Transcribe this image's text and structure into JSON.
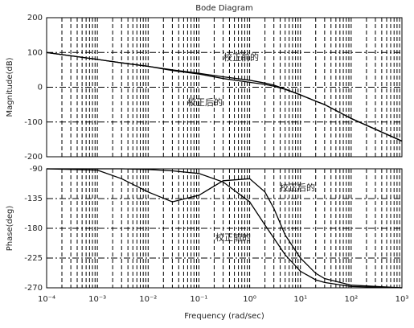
{
  "chart_data": [
    {
      "type": "line",
      "title": "Bode Diagram",
      "ylabel": "Magnitude(dB)",
      "log_x": true,
      "grid": true,
      "x": [
        0.0001,
        0.001,
        0.003,
        0.01,
        0.03,
        0.1,
        0.3,
        1,
        2,
        3,
        5,
        10,
        20,
        30,
        100,
        1000
      ],
      "series": [
        {
          "color": "#000000",
          "values": [
            100,
            80,
            70,
            60,
            50,
            40,
            30,
            20,
            12,
            6,
            -5,
            -22,
            -40,
            -50,
            -90,
            -155
          ]
        },
        {
          "color": "#000000",
          "values": [
            100,
            80,
            70,
            60,
            48,
            38,
            25,
            14,
            8,
            3,
            -6,
            -22,
            -40,
            -50,
            -90,
            -155
          ]
        }
      ],
      "annotations": [
        "校正前的",
        "校正后的"
      ],
      "xlim": [
        0.0001,
        1000
      ],
      "ylim": [
        -200,
        200
      ],
      "yticks": [
        -200,
        -100,
        0,
        100,
        200
      ]
    },
    {
      "type": "line",
      "ylabel": "Phase(deg)",
      "xlabel": "Frequency  (rad/sec)",
      "log_x": true,
      "grid": true,
      "x": [
        0.0001,
        0.001,
        0.003,
        0.01,
        0.03,
        0.1,
        0.3,
        1,
        2,
        3,
        5,
        10,
        20,
        30,
        100,
        1000
      ],
      "series": [
        {
          "color": "#000000",
          "values": [
            -90,
            -90,
            -90,
            -91,
            -93,
            -97,
            -110,
            -140,
            -175,
            -195,
            -220,
            -245,
            -258,
            -262,
            -268,
            -270
          ]
        },
        {
          "color": "#000000",
          "values": [
            -90,
            -92,
            -105,
            -125,
            -140,
            -130,
            -108,
            -105,
            -125,
            -150,
            -190,
            -225,
            -248,
            -256,
            -266,
            -270
          ]
        }
      ],
      "annotations": [
        "校正后的",
        "校正前的"
      ],
      "xlim": [
        0.0001,
        1000
      ],
      "ylim": [
        -270,
        -90
      ],
      "yticks": [
        -270,
        -225,
        -180,
        -135,
        -90
      ],
      "xticks": [
        {
          "value": 0.0001,
          "label": "10⁻⁴"
        },
        {
          "value": 0.001,
          "label": "10⁻³"
        },
        {
          "value": 0.01,
          "label": "10⁻²"
        },
        {
          "value": 0.1,
          "label": "10⁻¹"
        },
        {
          "value": 1,
          "label": "10⁰"
        },
        {
          "value": 10,
          "label": "10¹"
        },
        {
          "value": 100,
          "label": "10²"
        },
        {
          "value": 1000,
          "label": "10³"
        }
      ]
    }
  ]
}
